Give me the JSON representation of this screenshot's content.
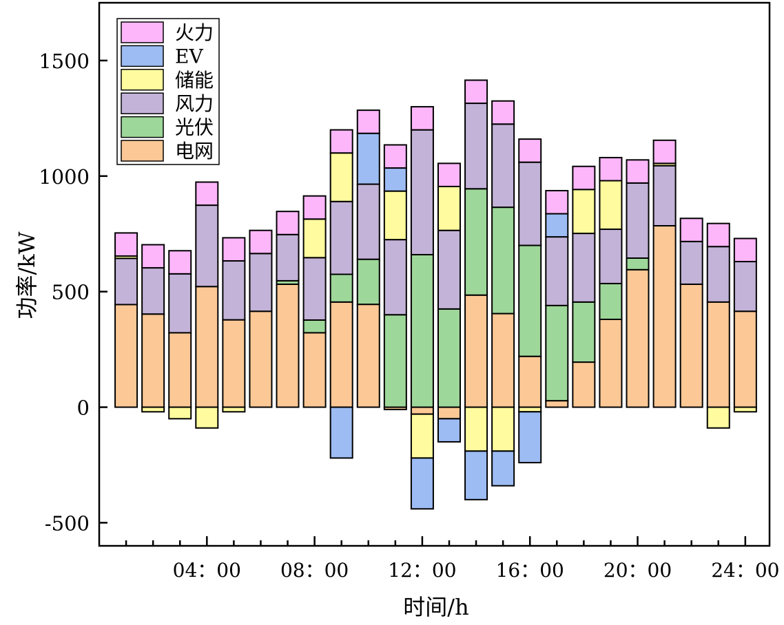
{
  "chart_data": {
    "type": "bar",
    "stacked": true,
    "xlabel": "时间/h",
    "ylabel": "功率/kW",
    "ylim": [
      -600,
      1750
    ],
    "xlim": [
      0,
      24.9
    ],
    "yticks": [
      -500,
      0,
      500,
      1000,
      1500
    ],
    "yticklabels": [
      "-500",
      "0",
      "500",
      "1000",
      "1500"
    ],
    "xticks": [
      4,
      8,
      12,
      16,
      20,
      24
    ],
    "xticklabels": [
      "04：00",
      "08：00",
      "12：00",
      "16：00",
      "20：00",
      "24：00"
    ],
    "x": [
      1,
      2,
      3,
      4,
      5,
      6,
      7,
      8,
      9,
      10,
      11,
      12,
      13,
      14,
      15,
      16,
      17,
      18,
      19,
      20,
      21,
      22,
      23,
      24
    ],
    "legend_position": "top-left",
    "legend_order": [
      "火力",
      "EV",
      "储能",
      "风力",
      "光伏",
      "电网"
    ],
    "series": [
      {
        "name": "电网",
        "color": "#FBC896",
        "values": [
          444,
          403,
          322,
          522,
          378,
          415,
          532,
          322,
          455,
          445,
          -10,
          -30,
          -50,
          485,
          405,
          220,
          28,
          195,
          380,
          595,
          785,
          532,
          455,
          415
        ]
      },
      {
        "name": "光伏",
        "color": "#9ED79A",
        "values": [
          0,
          0,
          0,
          0,
          0,
          0,
          15,
          55,
          120,
          195,
          400,
          660,
          425,
          460,
          460,
          480,
          412,
          260,
          155,
          50,
          0,
          0,
          0,
          0
        ]
      },
      {
        "name": "风力",
        "color": "#C3B3D8",
        "values": [
          200,
          200,
          255,
          352,
          255,
          250,
          200,
          270,
          315,
          325,
          325,
          540,
          340,
          370,
          360,
          360,
          297,
          297,
          235,
          325,
          260,
          185,
          240,
          215
        ]
      },
      {
        "name": "储能",
        "color": "#FFFB9E",
        "values": [
          10,
          -20,
          -50,
          -90,
          -20,
          0,
          0,
          167,
          210,
          0,
          210,
          -190,
          190,
          -190,
          -190,
          -20,
          0,
          190,
          210,
          0,
          10,
          0,
          -90,
          -20
        ]
      },
      {
        "name": "EV",
        "color": "#9DBCF3",
        "values": [
          0,
          0,
          0,
          0,
          0,
          0,
          0,
          0,
          -220,
          220,
          100,
          -220,
          -100,
          -210,
          -150,
          -220,
          100,
          0,
          0,
          0,
          0,
          0,
          0,
          0
        ]
      },
      {
        "name": "火力",
        "color": "#FCB6F9",
        "values": [
          100,
          100,
          100,
          100,
          100,
          100,
          100,
          100,
          100,
          100,
          100,
          100,
          100,
          100,
          100,
          100,
          100,
          100,
          100,
          100,
          100,
          100,
          100,
          100
        ]
      }
    ]
  }
}
